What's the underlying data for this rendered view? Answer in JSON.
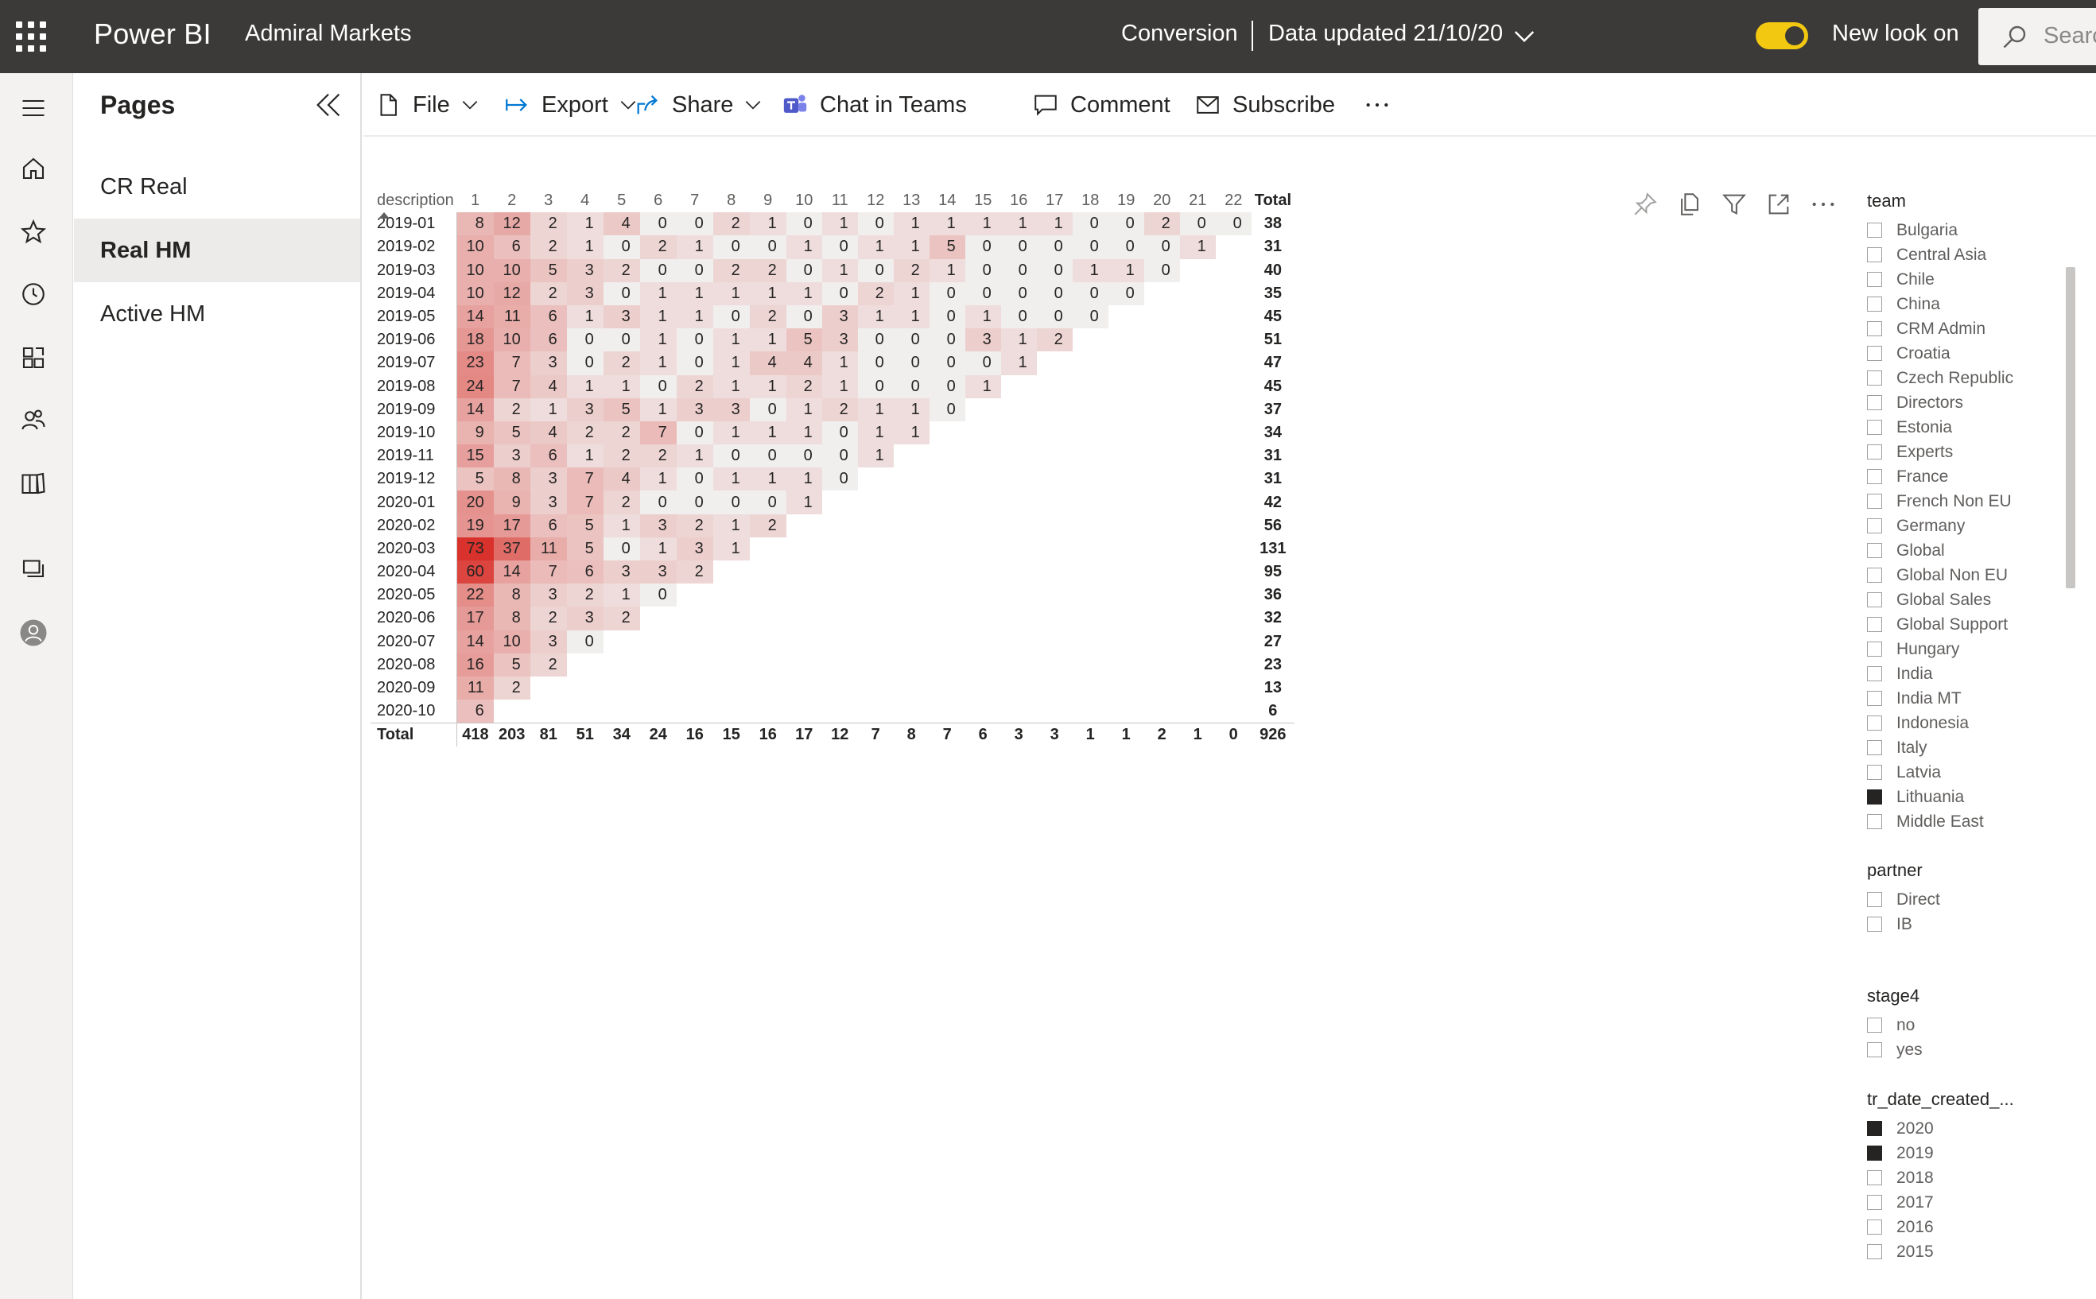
{
  "app": {
    "brand": "Power BI",
    "workspace": "Admiral Markets",
    "report_title": "Conversion",
    "data_updated": "Data updated 21/10/20",
    "new_look_label": "New look on",
    "new_look_on": true,
    "search_placeholder": "Searc",
    "accent_color": "#f2c811"
  },
  "rail": {
    "icons": [
      "menu-icon",
      "home-icon",
      "star-icon",
      "clock-icon",
      "apps-icon",
      "people-icon",
      "book-icon",
      "workspaces-icon",
      "account-icon"
    ]
  },
  "pages": {
    "title": "Pages",
    "items": [
      {
        "label": "CR Real",
        "active": false
      },
      {
        "label": "Real HM",
        "active": true
      },
      {
        "label": "Active HM",
        "active": false
      }
    ]
  },
  "actions": {
    "file": "File",
    "export": "Export",
    "share": "Share",
    "chat": "Chat in Teams",
    "comment": "Comment",
    "subscribe": "Subscribe"
  },
  "matrix": {
    "description_header": "description",
    "total_header": "Total",
    "columns": [
      "1",
      "2",
      "3",
      "4",
      "5",
      "6",
      "7",
      "8",
      "9",
      "10",
      "11",
      "12",
      "13",
      "14",
      "15",
      "16",
      "17",
      "18",
      "19",
      "20",
      "21",
      "22"
    ],
    "heat_low": "#f0efee",
    "heat_high": "#d9312b",
    "max_value": 73,
    "rows": [
      {
        "label": "2019-01",
        "values": [
          8,
          12,
          2,
          1,
          4,
          0,
          0,
          2,
          1,
          0,
          1,
          0,
          1,
          1,
          1,
          1,
          1,
          0,
          0,
          2,
          0,
          0
        ],
        "total": "38"
      },
      {
        "label": "2019-02",
        "values": [
          10,
          6,
          2,
          1,
          0,
          2,
          1,
          0,
          0,
          1,
          0,
          1,
          1,
          5,
          0,
          0,
          0,
          0,
          0,
          0,
          1
        ],
        "total": "31"
      },
      {
        "label": "2019-03",
        "values": [
          10,
          10,
          5,
          3,
          2,
          0,
          0,
          2,
          2,
          0,
          1,
          0,
          2,
          1,
          0,
          0,
          0,
          1,
          1,
          0
        ],
        "total": "40"
      },
      {
        "label": "2019-04",
        "values": [
          10,
          12,
          2,
          3,
          0,
          1,
          1,
          1,
          1,
          1,
          0,
          2,
          1,
          0,
          0,
          0,
          0,
          0,
          0
        ],
        "total": "35"
      },
      {
        "label": "2019-05",
        "values": [
          14,
          11,
          6,
          1,
          3,
          1,
          1,
          0,
          2,
          0,
          3,
          1,
          1,
          0,
          1,
          0,
          0,
          0
        ],
        "total": "45"
      },
      {
        "label": "2019-06",
        "values": [
          18,
          10,
          6,
          0,
          0,
          1,
          0,
          1,
          1,
          5,
          3,
          0,
          0,
          0,
          3,
          1,
          2
        ],
        "total": "51"
      },
      {
        "label": "2019-07",
        "values": [
          23,
          7,
          3,
          0,
          2,
          1,
          0,
          1,
          4,
          4,
          1,
          0,
          0,
          0,
          0,
          1
        ],
        "total": "47"
      },
      {
        "label": "2019-08",
        "values": [
          24,
          7,
          4,
          1,
          1,
          0,
          2,
          1,
          1,
          2,
          1,
          0,
          0,
          0,
          1
        ],
        "total": "45"
      },
      {
        "label": "2019-09",
        "values": [
          14,
          2,
          1,
          3,
          5,
          1,
          3,
          3,
          0,
          1,
          2,
          1,
          1,
          0
        ],
        "total": "37"
      },
      {
        "label": "2019-10",
        "values": [
          9,
          5,
          4,
          2,
          2,
          7,
          0,
          1,
          1,
          1,
          0,
          1,
          1
        ],
        "total": "34"
      },
      {
        "label": "2019-11",
        "values": [
          15,
          3,
          6,
          1,
          2,
          2,
          1,
          0,
          0,
          0,
          0,
          1
        ],
        "total": "31"
      },
      {
        "label": "2019-12",
        "values": [
          5,
          8,
          3,
          7,
          4,
          1,
          0,
          1,
          1,
          1,
          0
        ],
        "total": "31"
      },
      {
        "label": "2020-01",
        "values": [
          20,
          9,
          3,
          7,
          2,
          0,
          0,
          0,
          0,
          1
        ],
        "total": "42"
      },
      {
        "label": "2020-02",
        "values": [
          19,
          17,
          6,
          5,
          1,
          3,
          2,
          1,
          2
        ],
        "total": "56"
      },
      {
        "label": "2020-03",
        "values": [
          73,
          37,
          11,
          5,
          0,
          1,
          3,
          1
        ],
        "total": "131"
      },
      {
        "label": "2020-04",
        "values": [
          60,
          14,
          7,
          6,
          3,
          3,
          2
        ],
        "total": "95"
      },
      {
        "label": "2020-05",
        "values": [
          22,
          8,
          3,
          2,
          1,
          0
        ],
        "total": "36"
      },
      {
        "label": "2020-06",
        "values": [
          17,
          8,
          2,
          3,
          2
        ],
        "total": "32"
      },
      {
        "label": "2020-07",
        "values": [
          14,
          10,
          3,
          0
        ],
        "total": "27"
      },
      {
        "label": "2020-08",
        "values": [
          16,
          5,
          2
        ],
        "total": "23"
      },
      {
        "label": "2020-09",
        "values": [
          11,
          2
        ],
        "total": "13"
      },
      {
        "label": "2020-10",
        "values": [
          6
        ],
        "total": "6"
      }
    ],
    "total_row": {
      "label": "Total",
      "values": [
        "418",
        "203",
        "81",
        "51",
        "34",
        "24",
        "16",
        "15",
        "16",
        "17",
        "12",
        "7",
        "8",
        "7",
        "6",
        "3",
        "3",
        "1",
        "1",
        "2",
        "1",
        "0"
      ],
      "total": "926"
    }
  },
  "slicers": {
    "team": {
      "title": "team",
      "items": [
        {
          "label": "Bulgaria",
          "checked": false
        },
        {
          "label": "Central Asia",
          "checked": false
        },
        {
          "label": "Chile",
          "checked": false
        },
        {
          "label": "China",
          "checked": false
        },
        {
          "label": "CRM Admin",
          "checked": false
        },
        {
          "label": "Croatia",
          "checked": false
        },
        {
          "label": "Czech Republic",
          "checked": false
        },
        {
          "label": "Directors",
          "checked": false
        },
        {
          "label": "Estonia",
          "checked": false
        },
        {
          "label": "Experts",
          "checked": false
        },
        {
          "label": "France",
          "checked": false
        },
        {
          "label": "French Non EU",
          "checked": false
        },
        {
          "label": "Germany",
          "checked": false
        },
        {
          "label": "Global",
          "checked": false
        },
        {
          "label": "Global Non EU",
          "checked": false
        },
        {
          "label": "Global Sales",
          "checked": false
        },
        {
          "label": "Global Support",
          "checked": false
        },
        {
          "label": "Hungary",
          "checked": false
        },
        {
          "label": "India",
          "checked": false
        },
        {
          "label": "India MT",
          "checked": false
        },
        {
          "label": "Indonesia",
          "checked": false
        },
        {
          "label": "Italy",
          "checked": false
        },
        {
          "label": "Latvia",
          "checked": false
        },
        {
          "label": "Lithuania",
          "checked": true
        },
        {
          "label": "Middle East",
          "checked": false
        }
      ]
    },
    "partner": {
      "title": "partner",
      "items": [
        {
          "label": "Direct",
          "checked": false
        },
        {
          "label": "IB",
          "checked": false
        }
      ]
    },
    "stage4": {
      "title": "stage4",
      "items": [
        {
          "label": "no",
          "checked": false
        },
        {
          "label": "yes",
          "checked": false
        }
      ]
    },
    "tr_date": {
      "title": "tr_date_created_...",
      "items": [
        {
          "label": "2020",
          "checked": true
        },
        {
          "label": "2019",
          "checked": true
        },
        {
          "label": "2018",
          "checked": false
        },
        {
          "label": "2017",
          "checked": false
        },
        {
          "label": "2016",
          "checked": false
        },
        {
          "label": "2015",
          "checked": false
        }
      ]
    }
  }
}
